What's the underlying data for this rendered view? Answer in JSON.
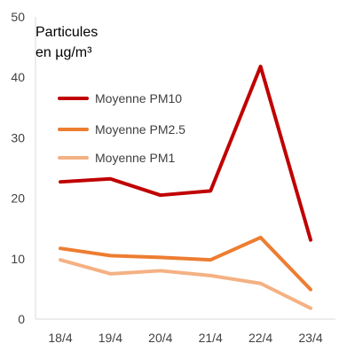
{
  "chart_data": {
    "type": "line",
    "title": "",
    "ylabel_lines": [
      "Particules",
      "en µg/m³"
    ],
    "categories": [
      "18/4",
      "19/4",
      "20/4",
      "21/4",
      "22/4",
      "23/4"
    ],
    "ylim": [
      0,
      50
    ],
    "yticks": [
      0,
      10,
      20,
      30,
      40,
      50
    ],
    "grid": false,
    "legend_position": "top-left",
    "series": [
      {
        "name": "Moyenne PM10",
        "color": "#c00000",
        "values": [
          22.7,
          23.2,
          20.5,
          21.2,
          41.8,
          13.1
        ]
      },
      {
        "name": "Moyenne PM2.5",
        "color": "#ed7d31",
        "values": [
          11.7,
          10.5,
          10.2,
          9.8,
          13.5,
          4.9
        ]
      },
      {
        "name": "Moyenne PM1",
        "color": "#f4b183",
        "values": [
          9.8,
          7.5,
          8.0,
          7.2,
          5.9,
          1.8
        ]
      }
    ]
  }
}
